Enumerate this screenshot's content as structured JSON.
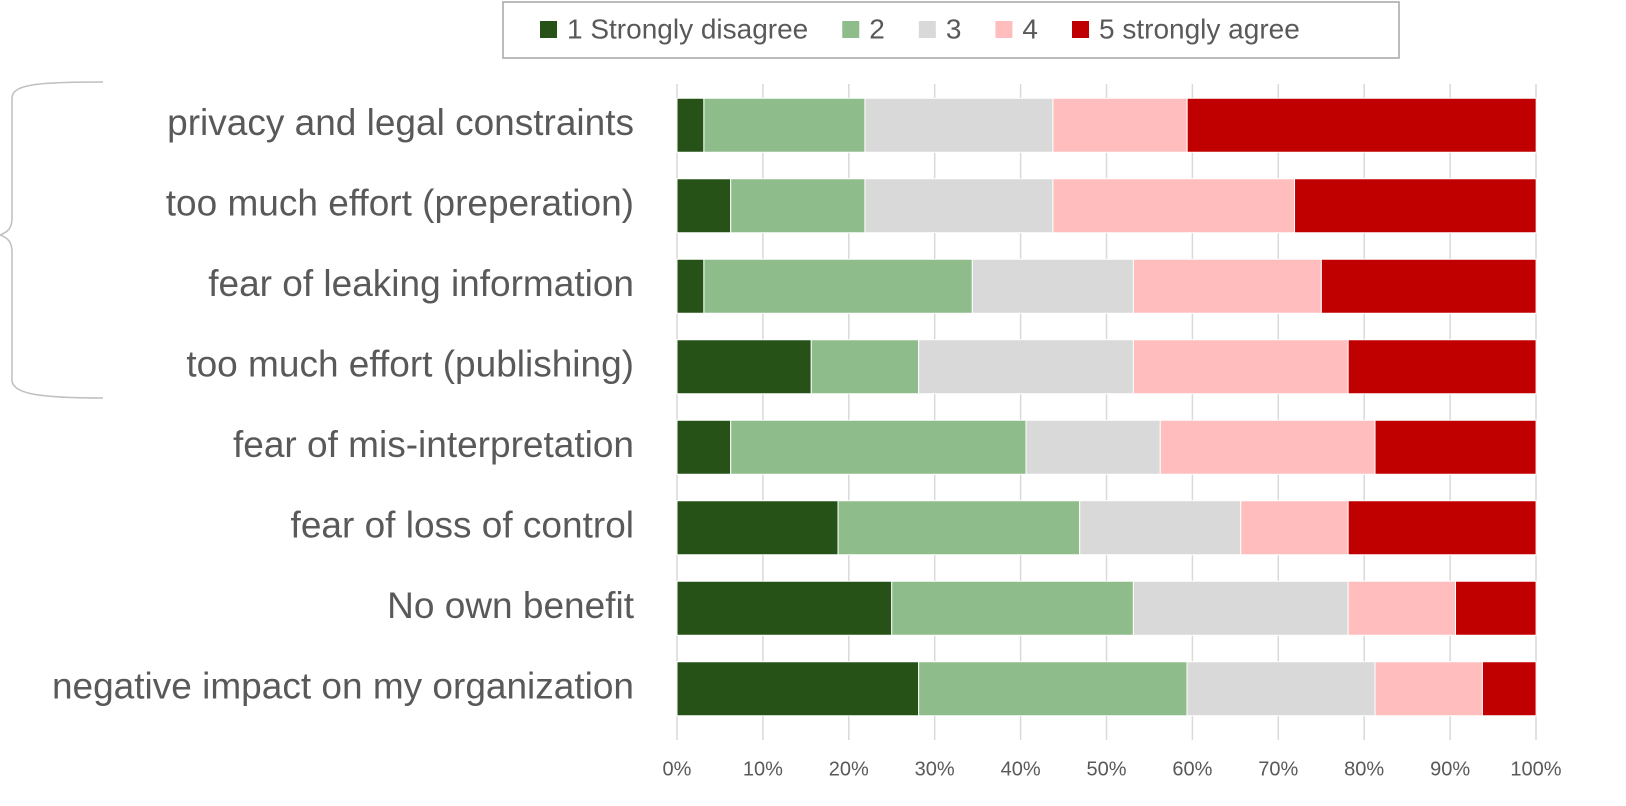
{
  "chart_data": {
    "type": "stacked_bar_horizontal",
    "categories": [
      "privacy and legal constraints",
      "too much effort (preperation)",
      "fear of leaking information",
      "too much effort (publishing)",
      "fear of mis-interpretation",
      "fear of loss of control",
      "No own benefit",
      "negative impact on my organization"
    ],
    "series": [
      {
        "name": "1 Strongly disagree",
        "color": "#265218",
        "values": [
          3.13,
          6.25,
          3.13,
          15.63,
          6.25,
          18.75,
          25,
          28.13
        ]
      },
      {
        "name": "2",
        "color": "#8fbc8b",
        "values": [
          18.75,
          15.63,
          31.25,
          12.5,
          34.38,
          28.13,
          28.13,
          31.25
        ]
      },
      {
        "name": "3",
        "color": "#d9d9d9",
        "values": [
          21.88,
          21.88,
          18.75,
          25,
          15.63,
          18.75,
          25,
          21.88
        ]
      },
      {
        "name": "4",
        "color": "#ffbdbe",
        "values": [
          15.63,
          28.13,
          21.88,
          25,
          25,
          12.5,
          12.5,
          12.5
        ]
      },
      {
        "name": "5 strongly agree",
        "color": "#c00000",
        "values": [
          40.63,
          28.13,
          25,
          21.88,
          18.75,
          21.88,
          9.38,
          6.25
        ]
      }
    ],
    "xlim": [
      0,
      100
    ],
    "xticks": [
      {
        "value": 0,
        "label": "0%"
      },
      {
        "value": 10,
        "label": "10%"
      },
      {
        "value": 20,
        "label": "20%"
      },
      {
        "value": 30,
        "label": "30%"
      },
      {
        "value": 40,
        "label": "40%"
      },
      {
        "value": 50,
        "label": "50%"
      },
      {
        "value": 60,
        "label": "60%"
      },
      {
        "value": 70,
        "label": "70%"
      },
      {
        "value": 80,
        "label": "80%"
      },
      {
        "value": 90,
        "label": "90%"
      },
      {
        "value": 100,
        "label": "100%"
      }
    ],
    "grid": true,
    "legend": "top"
  }
}
